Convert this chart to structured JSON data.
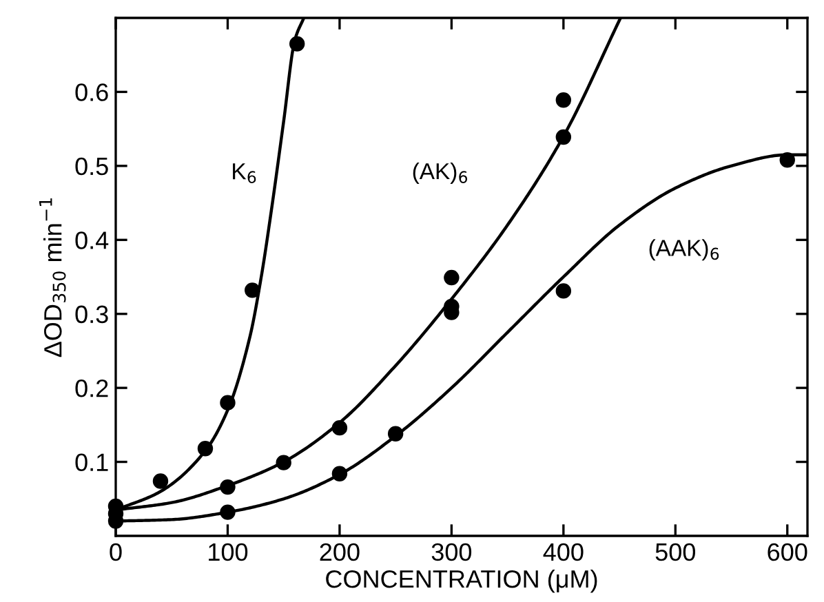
{
  "chart_data": {
    "type": "scatter",
    "xlabel": "CONCENTRATION (μM)",
    "ylabel": "ΔOD$_{350}$ min$^{−1}$",
    "xlim": [
      0,
      618
    ],
    "ylim": [
      0,
      0.7
    ],
    "xticks": [
      0,
      100,
      200,
      300,
      400,
      500,
      600
    ],
    "yticks": [
      0.1,
      0.2,
      0.3,
      0.4,
      0.5,
      0.6
    ],
    "grid": false,
    "legend": false,
    "series": [
      {
        "marker": "circle",
        "color": "#000000",
        "x": [
          0,
          40,
          80,
          100,
          122,
          162
        ],
        "values": [
          0.04,
          0.074,
          0.118,
          0.18,
          0.332,
          0.665
        ]
      },
      {
        "marker": "circle",
        "color": "#000000",
        "x": [
          0,
          100,
          150,
          200,
          300,
          300,
          300,
          400,
          400
        ],
        "values": [
          0.03,
          0.066,
          0.099,
          0.146,
          0.349,
          0.31,
          0.302,
          0.589,
          0.539
        ]
      },
      {
        "marker": "circle",
        "color": "#000000",
        "x": [
          0,
          100,
          200,
          250,
          400,
          600
        ],
        "values": [
          0.02,
          0.032,
          0.084,
          0.138,
          0.331,
          0.508
        ]
      },
      {
        "type": "line",
        "name": "K$_{6}$",
        "marker": "none",
        "line_style": "solid",
        "color": "#000000",
        "x": [
          0,
          40,
          80,
          100,
          120,
          130,
          140,
          150,
          160,
          168
        ],
        "values": [
          0.035,
          0.06,
          0.115,
          0.17,
          0.27,
          0.35,
          0.45,
          0.56,
          0.67,
          0.7
        ]
      },
      {
        "type": "line",
        "name": "(AK)$_{6}$",
        "marker": "none",
        "line_style": "solid",
        "color": "#000000",
        "x": [
          0,
          50,
          100,
          150,
          200,
          250,
          300,
          350,
          400,
          451
        ],
        "values": [
          0.035,
          0.045,
          0.068,
          0.1,
          0.153,
          0.23,
          0.32,
          0.42,
          0.54,
          0.7
        ]
      },
      {
        "type": "line",
        "name": "(AAK)$_{6}$",
        "marker": "none",
        "line_style": "solid",
        "color": "#000000",
        "x": [
          0,
          50,
          100,
          150,
          200,
          250,
          300,
          350,
          400,
          450,
          500,
          550,
          600,
          618
        ],
        "values": [
          0.02,
          0.022,
          0.032,
          0.05,
          0.083,
          0.135,
          0.2,
          0.275,
          0.35,
          0.42,
          0.47,
          0.5,
          0.515,
          0.515
        ]
      }
    ]
  }
}
